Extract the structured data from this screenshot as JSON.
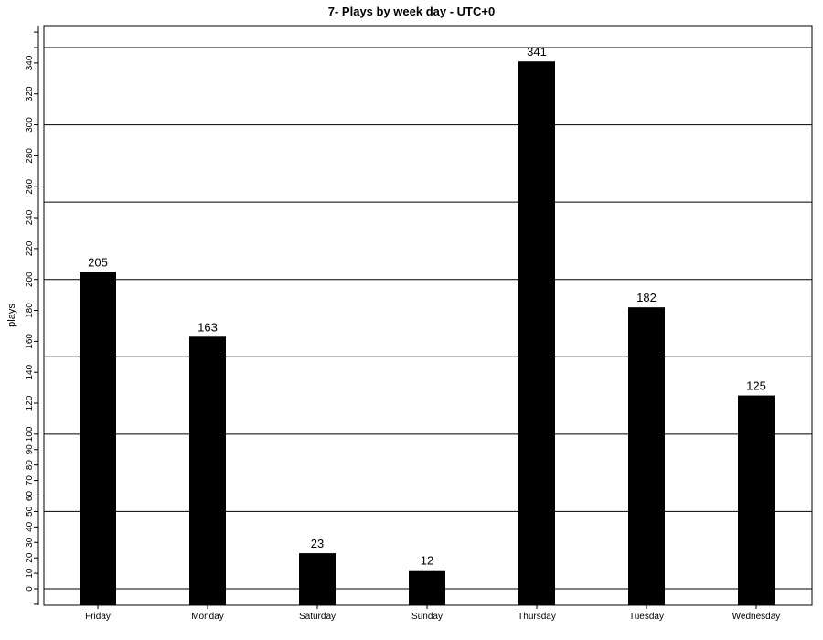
{
  "chart_data": {
    "type": "bar",
    "title": "7- Plays by week day - UTC+0",
    "ylabel": "plays",
    "xlabel": "",
    "categories": [
      "Friday",
      "Monday",
      "Saturday",
      "Sunday",
      "Thursday",
      "Tuesday",
      "Wednesday"
    ],
    "values": [
      205,
      163,
      23,
      12,
      341,
      182,
      125
    ],
    "ylim": [
      -10,
      370
    ],
    "yticks": [
      0,
      10,
      20,
      30,
      40,
      50,
      60,
      70,
      80,
      90,
      100,
      120,
      140,
      160,
      180,
      200,
      220,
      240,
      260,
      280,
      300,
      320,
      340
    ],
    "minor_ticks": [
      -10,
      350,
      360
    ],
    "gridlines": [
      0,
      50,
      100,
      150,
      200,
      250,
      300,
      350
    ],
    "bar_color": "#000000",
    "grid_color": "#000000"
  }
}
